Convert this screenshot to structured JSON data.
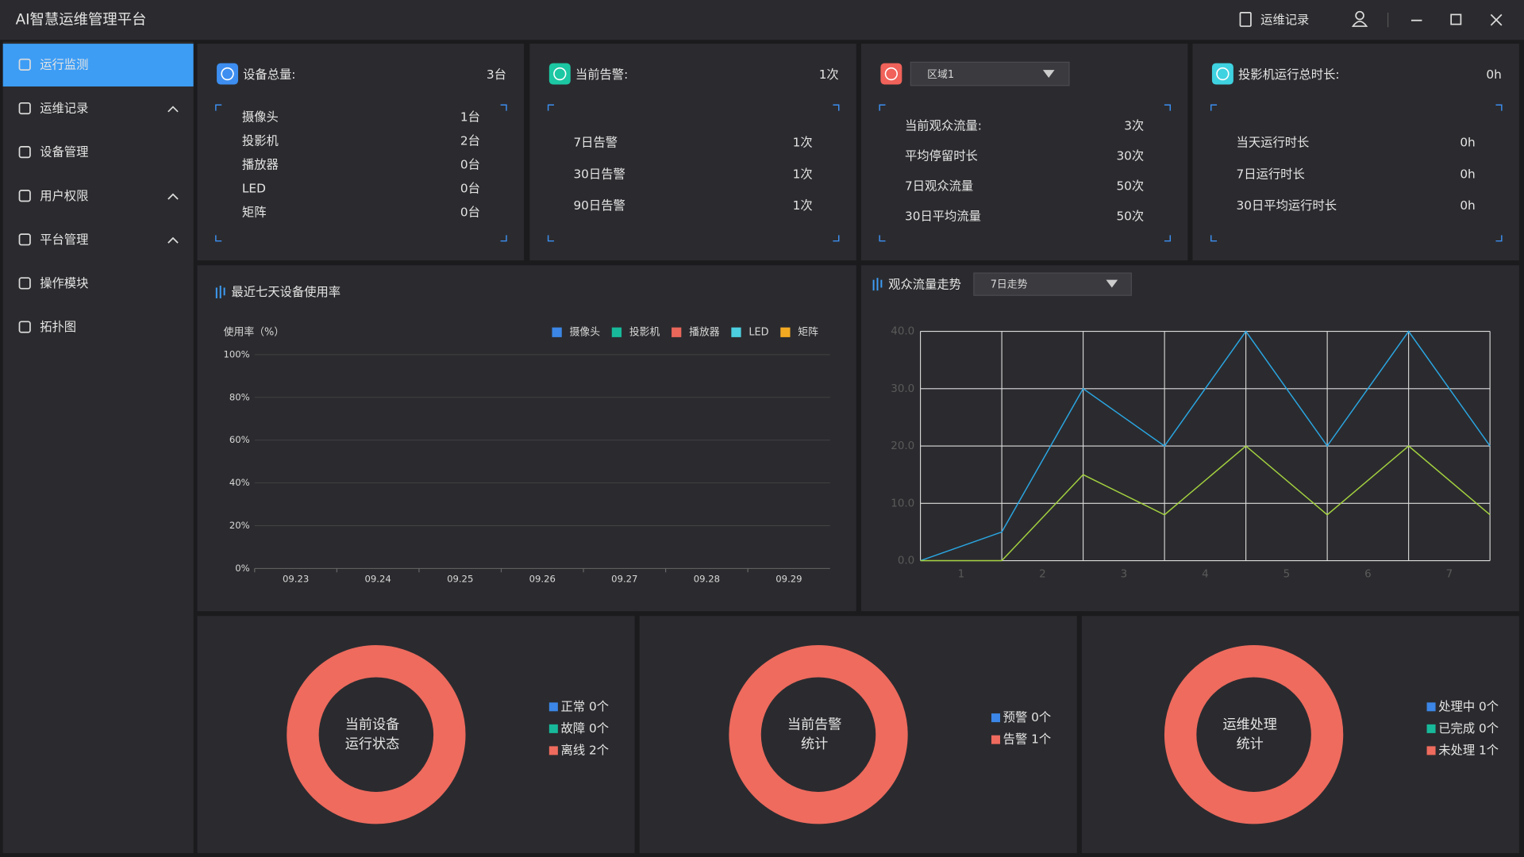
{
  "header": {
    "title": "AI智慧运维管理平台",
    "record_button": "运维记录"
  },
  "sidebar": {
    "items": [
      "运行监测",
      "运维记录",
      "设备管理",
      "用户权限",
      "平台管理",
      "操作模块",
      "拓扑图"
    ]
  },
  "cards": [
    {
      "title": "设备总量:",
      "total": "3台",
      "rows": [
        [
          "摄像头",
          "1台"
        ],
        [
          "投影机",
          "2台"
        ],
        [
          "播放器",
          "0台"
        ],
        [
          "LED",
          "0台"
        ],
        [
          "矩阵",
          "0台"
        ]
      ]
    },
    {
      "title": "当前告警:",
      "total": "1次",
      "rows": [
        [
          "7日告警",
          "1次"
        ],
        [
          "30日告警",
          "1次"
        ],
        [
          "90日告警",
          "1次"
        ]
      ]
    },
    {
      "dropdown": "区域1",
      "rows": [
        [
          "当前观众流量:",
          "3次"
        ],
        [
          "平均停留时长",
          "30次"
        ],
        [
          "7日观众流量",
          "50次"
        ],
        [
          "30日平均流量",
          "50次"
        ]
      ]
    },
    {
      "title": "投影机运行总时长:",
      "total": "0h",
      "rows": [
        [
          "当天运行时长",
          "0h"
        ],
        [
          "7日运行时长",
          "0h"
        ],
        [
          "30日平均运行时长",
          "0h"
        ]
      ]
    }
  ],
  "chart_data": [
    {
      "type": "bar",
      "title": "最近七天设备使用率",
      "y_label": "使用率（%）",
      "categories": [
        "09.23",
        "09.24",
        "09.25",
        "09.26",
        "09.27",
        "09.28",
        "09.29"
      ],
      "series": [
        {
          "name": "摄像头",
          "color": "#3b86e6",
          "values": [
            0,
            0,
            0,
            0,
            0,
            0,
            0
          ]
        },
        {
          "name": "投影机",
          "color": "#17b99a",
          "values": [
            0,
            0,
            0,
            0,
            0,
            0,
            0
          ]
        },
        {
          "name": "播放器",
          "color": "#e8675a",
          "values": [
            0,
            0,
            0,
            0,
            0,
            0,
            0
          ]
        },
        {
          "name": "LED",
          "color": "#4ccfe0",
          "values": [
            0,
            0,
            0,
            0,
            0,
            0,
            0
          ]
        },
        {
          "name": "矩阵",
          "color": "#f2a922",
          "values": [
            0,
            0,
            0,
            0,
            0,
            0,
            0
          ]
        }
      ],
      "ylim": [
        0,
        100
      ],
      "yticks": [
        {
          "value": 0,
          "label": "0%"
        },
        {
          "value": 20,
          "label": "20%"
        },
        {
          "value": 40,
          "label": "40%"
        },
        {
          "value": 60,
          "label": "60%"
        },
        {
          "value": 80,
          "label": "80%"
        },
        {
          "value": 100,
          "label": "100%"
        }
      ],
      "grid": true
    },
    {
      "type": "line",
      "title": "观众流量走势",
      "dropdown": "7日走势",
      "x": [
        0,
        1,
        2,
        3,
        4,
        5,
        6,
        7
      ],
      "series": [
        {
          "color": "#2aa6e2",
          "values": [
            0,
            5,
            30,
            20,
            40,
            20,
            40,
            20
          ]
        },
        {
          "color": "#a4d23f",
          "values": [
            0,
            0,
            15,
            8,
            20,
            8,
            20,
            8
          ]
        }
      ],
      "xlim": [
        0,
        7
      ],
      "xticks": [
        {
          "value": 0.5,
          "label": "1"
        },
        {
          "value": 1.5,
          "label": "2"
        },
        {
          "value": 2.5,
          "label": "3"
        },
        {
          "value": 3.5,
          "label": "4"
        },
        {
          "value": 4.5,
          "label": "5"
        },
        {
          "value": 5.5,
          "label": "6"
        },
        {
          "value": 6.5,
          "label": "7"
        }
      ],
      "ylim": [
        0,
        40
      ],
      "yticks": [
        {
          "value": 0,
          "label": "0.0"
        },
        {
          "value": 10,
          "label": "10.0"
        },
        {
          "value": 20,
          "label": "20.0"
        },
        {
          "value": 30,
          "label": "30.0"
        },
        {
          "value": 40,
          "label": "40.0"
        }
      ],
      "grid": true
    },
    {
      "type": "pie",
      "center_label": [
        "当前设备",
        "运行状态"
      ],
      "categories": [
        "正常",
        "故障",
        "离线"
      ],
      "values": [
        0,
        0,
        2
      ],
      "value_labels": [
        "0个",
        "0个",
        "2个"
      ],
      "colors": [
        "#3b86e6",
        "#17b99a",
        "#ee6b5e"
      ]
    },
    {
      "type": "pie",
      "center_label": [
        "当前告警",
        "统计"
      ],
      "categories": [
        "预警",
        "告警"
      ],
      "values": [
        0,
        1
      ],
      "value_labels": [
        "0个",
        "1个"
      ],
      "colors": [
        "#3b86e6",
        "#ee6b5e"
      ]
    },
    {
      "type": "pie",
      "center_label": [
        "运维处理",
        "统计"
      ],
      "categories": [
        "处理中",
        "已完成",
        "未处理"
      ],
      "values": [
        0,
        0,
        1
      ],
      "value_labels": [
        "0个",
        "0个",
        "1个"
      ],
      "colors": [
        "#3b86e6",
        "#17b99a",
        "#ee6b5e"
      ]
    }
  ]
}
